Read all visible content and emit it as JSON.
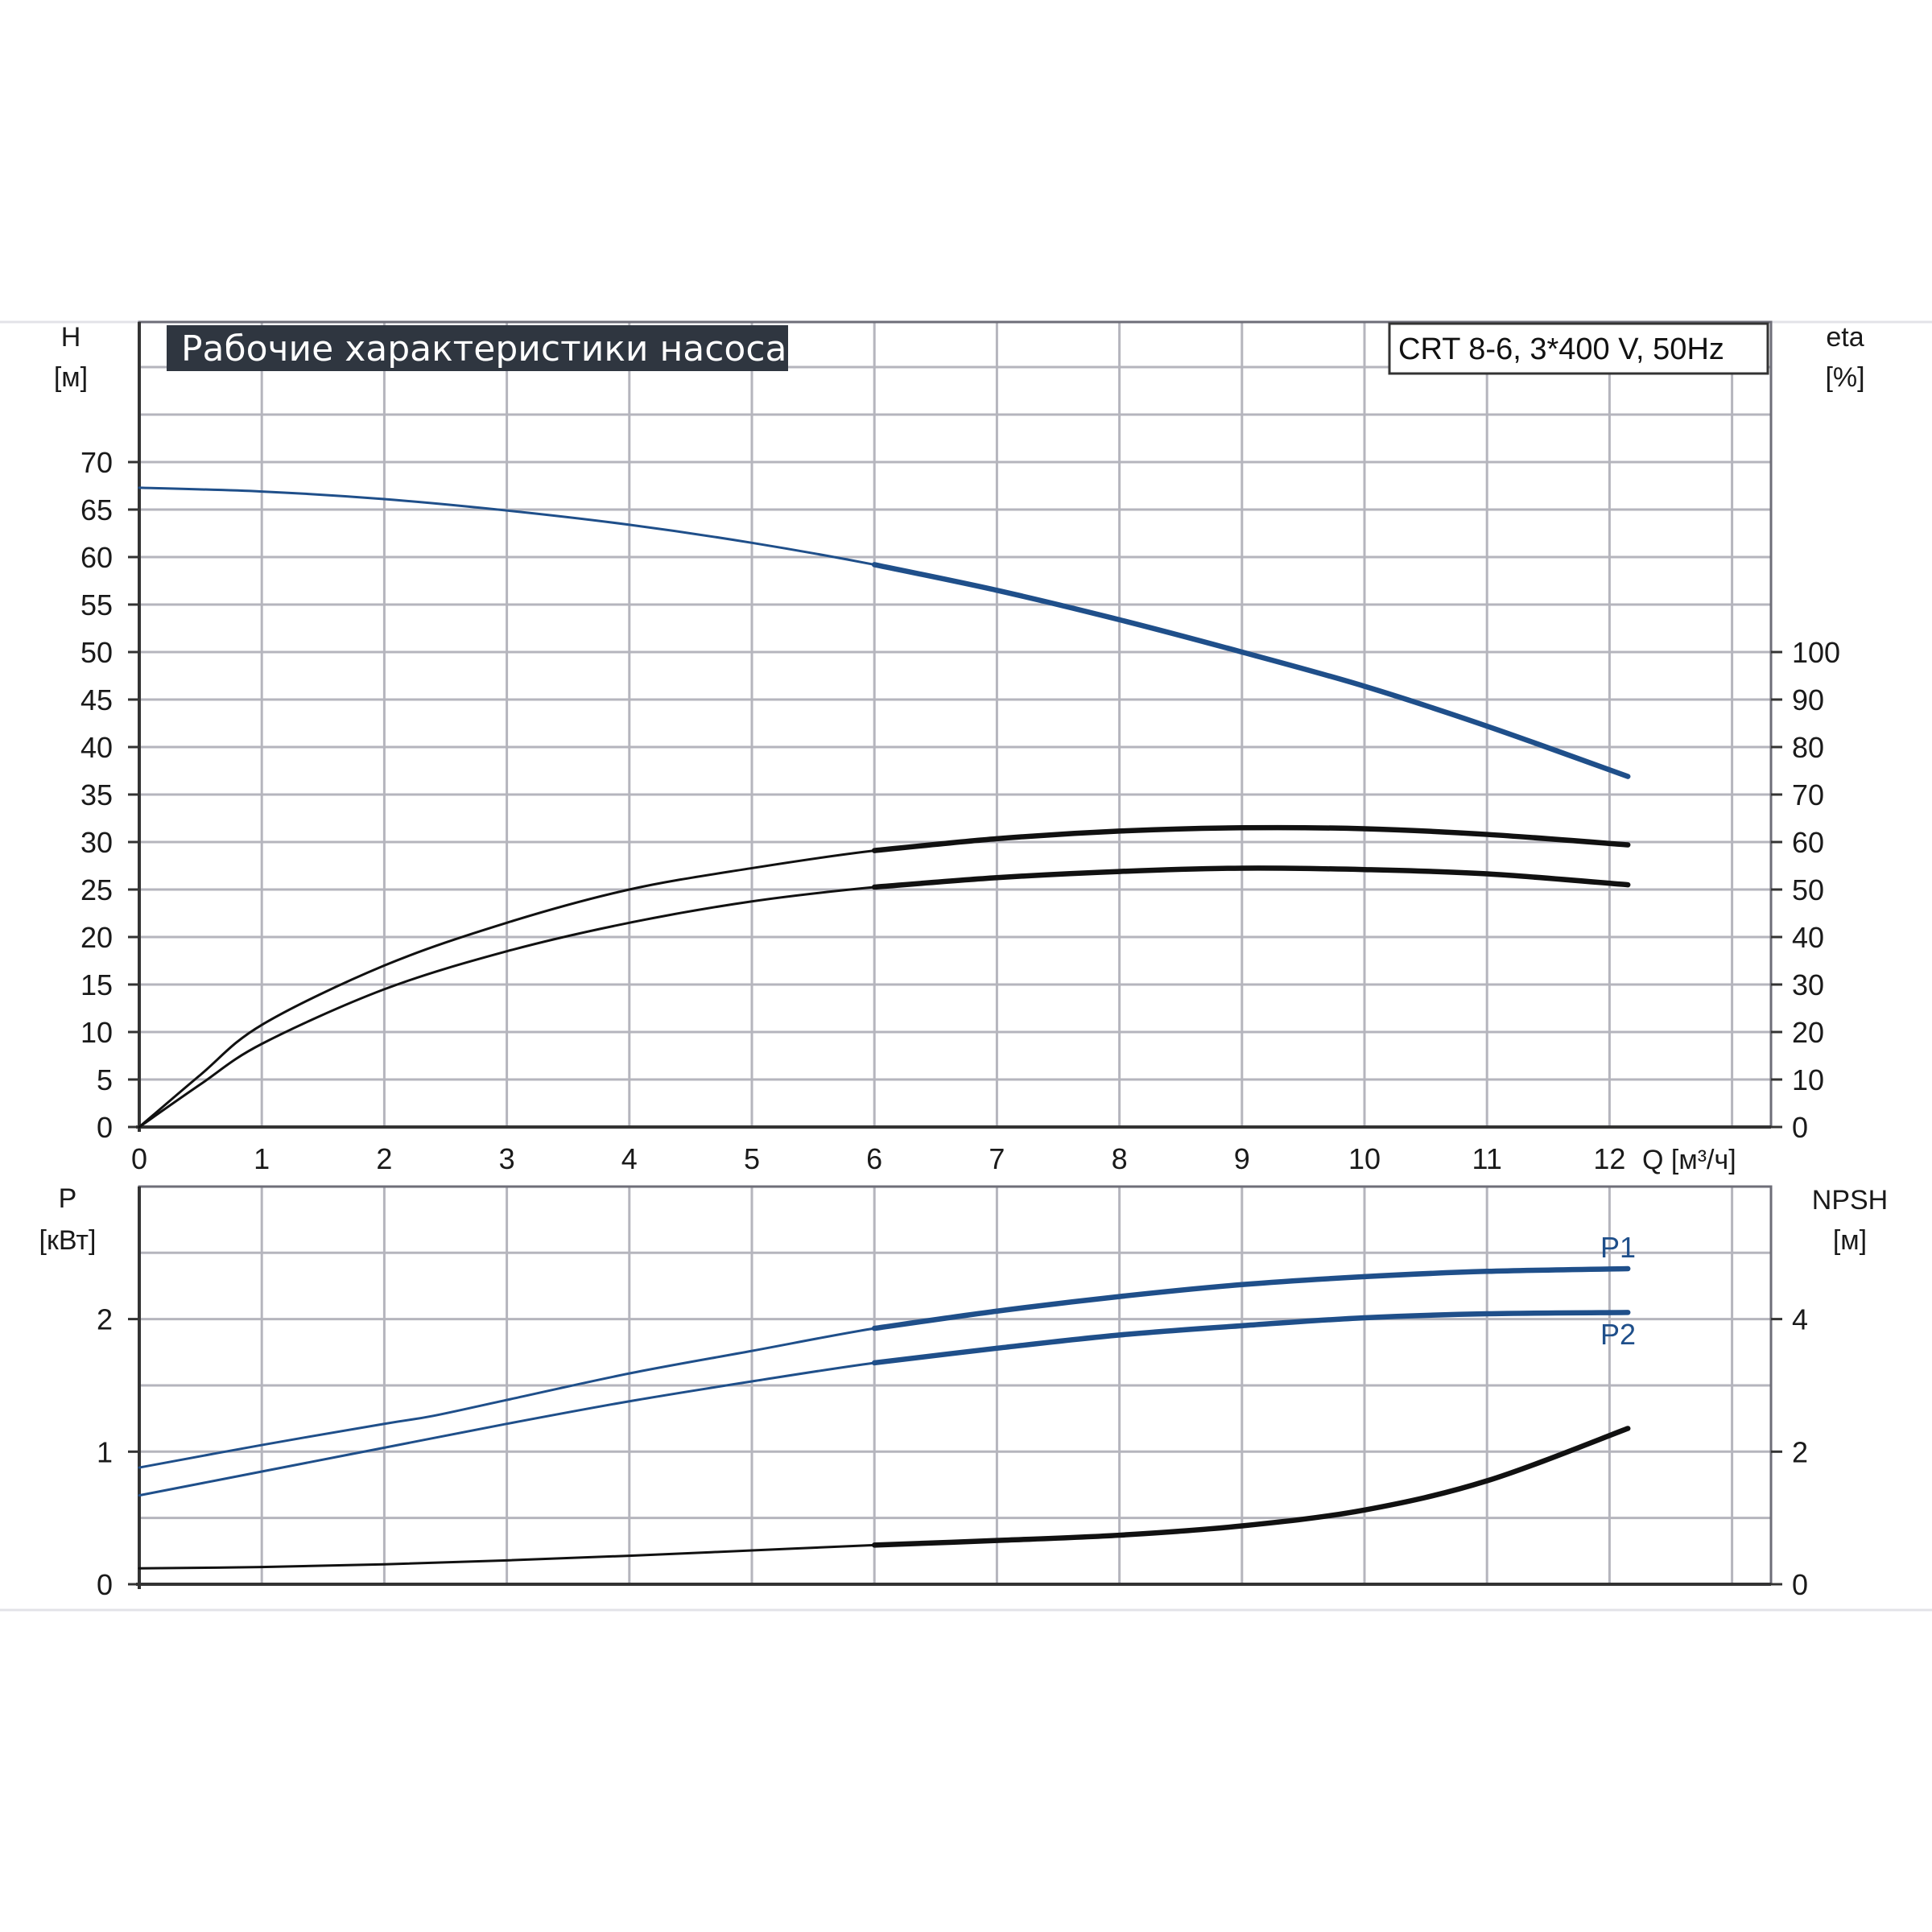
{
  "title": "Рабочие характеристики насоса",
  "model": "CRT 8-6, 3*400 V, 50Hz",
  "colors": {
    "blue": "#1f4f8a",
    "black": "#111111",
    "title_bg": "#2f3640",
    "grid": "#b5b5bd"
  },
  "axes": {
    "x_label": "Q [м³/ч]",
    "h_label_1": "H",
    "h_label_2": "[м]",
    "eta_label_1": "eta",
    "eta_label_2": "[%]",
    "p_label_1": "P",
    "p_label_2": "[кВт]",
    "npsh_label_1": "NPSH",
    "npsh_label_2": "[м]"
  },
  "chart_data": [
    {
      "type": "line",
      "panel": "top",
      "title": "Рабочие характеристики насоса",
      "xlabel": "Q [м³/ч]",
      "ylabel": "H [м]",
      "ylabel_right": "eta [%]",
      "xlim": [
        0,
        13.3
      ],
      "ylim": [
        0,
        70
      ],
      "ylim_right": [
        0,
        140
      ],
      "x_ticks": [
        "0",
        "1",
        "2",
        "3",
        "4",
        "5",
        "6",
        "7",
        "8",
        "9",
        "10",
        "11",
        "12"
      ],
      "y_ticks": [
        "0",
        "5",
        "10",
        "15",
        "20",
        "25",
        "30",
        "35",
        "40",
        "45",
        "50",
        "55",
        "60",
        "65",
        "70"
      ],
      "y_right_ticks": [
        "0",
        "10",
        "20",
        "30",
        "40",
        "50",
        "60",
        "70",
        "80",
        "90",
        "100"
      ],
      "grid": true,
      "series": [
        {
          "name": "H",
          "axis": "left",
          "color": "#1f4f8a",
          "x": [
            0,
            1,
            2,
            3,
            4,
            5,
            6,
            7,
            8,
            9,
            10,
            11,
            12.15
          ],
          "y": [
            67.3,
            66.9,
            66.1,
            64.9,
            63.4,
            61.5,
            59.2,
            56.5,
            53.4,
            50.0,
            46.4,
            42.2,
            36.9
          ],
          "bold_from": 6
        },
        {
          "name": "",
          "axis": "right",
          "color": "#111111",
          "x": [
            0,
            0.5,
            1,
            2,
            3,
            4,
            5,
            6,
            7,
            8,
            9,
            10,
            11,
            12.15
          ],
          "y": [
            0,
            11,
            21.5,
            34,
            43,
            50,
            54.5,
            58.2,
            60.7,
            62.3,
            63.0,
            62.8,
            61.6,
            59.4
          ],
          "bold_from": 6
        },
        {
          "name": "",
          "axis": "right",
          "color": "#111111",
          "x": [
            0,
            0.5,
            1,
            2,
            3,
            4,
            5,
            6,
            7,
            8,
            9,
            10,
            11,
            12.15
          ],
          "y": [
            0,
            9,
            17.5,
            29,
            37,
            43,
            47.5,
            50.5,
            52.5,
            53.8,
            54.5,
            54.2,
            53.3,
            51.0
          ],
          "bold_from": 6
        }
      ]
    },
    {
      "type": "line",
      "panel": "bottom",
      "ylabel": "P [кВт]",
      "ylabel_right": "NPSH [м]",
      "xlim": [
        0,
        13.3
      ],
      "ylim": [
        0,
        3
      ],
      "ylim_right": [
        0,
        6
      ],
      "y_ticks": [
        "0",
        "1",
        "2"
      ],
      "y_right_ticks": [
        "0",
        "2",
        "4"
      ],
      "grid": true,
      "series": [
        {
          "name": "P1",
          "axis": "left",
          "color": "#1f4f8a",
          "x": [
            0,
            1,
            2,
            2.4,
            3,
            4,
            5,
            6,
            7,
            8,
            9,
            10,
            11,
            12.15
          ],
          "y": [
            0.88,
            1.05,
            1.21,
            1.27,
            1.39,
            1.59,
            1.76,
            1.93,
            2.06,
            2.17,
            2.26,
            2.32,
            2.36,
            2.38
          ],
          "bold_from": 6
        },
        {
          "name": "P2",
          "axis": "left",
          "color": "#1f4f8a",
          "x": [
            0,
            1,
            2,
            3,
            4,
            5,
            6,
            7,
            8,
            9,
            10,
            11,
            12.15
          ],
          "y": [
            0.67,
            0.85,
            1.03,
            1.21,
            1.38,
            1.53,
            1.67,
            1.78,
            1.88,
            1.95,
            2.01,
            2.04,
            2.05
          ],
          "bold_from": 6
        },
        {
          "name": "",
          "axis": "right",
          "color": "#111111",
          "x": [
            0,
            1,
            2,
            3,
            4,
            5,
            6,
            7,
            8,
            9,
            10,
            11,
            12.15
          ],
          "y": [
            0.24,
            0.26,
            0.3,
            0.36,
            0.43,
            0.51,
            0.59,
            0.66,
            0.74,
            0.88,
            1.12,
            1.56,
            2.35
          ],
          "bold_from": 6
        }
      ]
    }
  ]
}
